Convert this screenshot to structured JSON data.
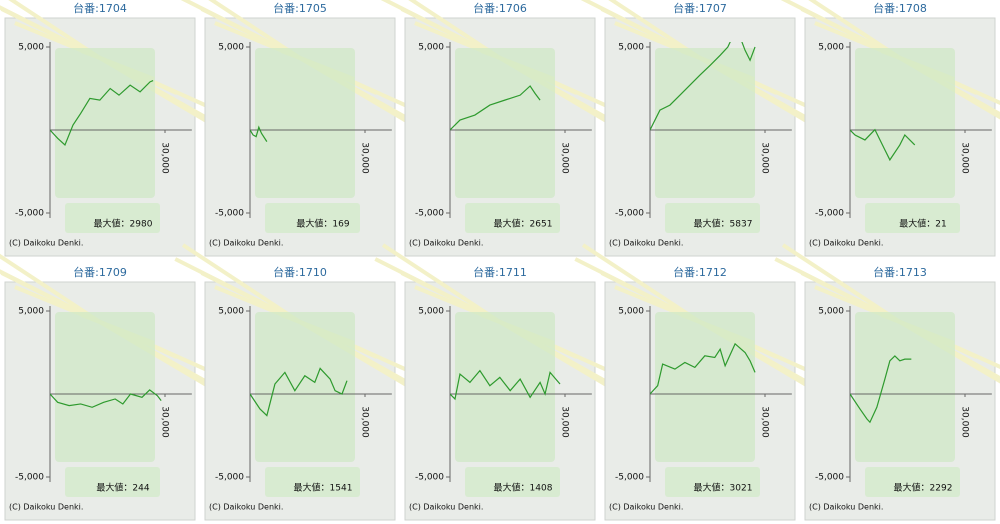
{
  "chart_data": [
    {
      "type": "line",
      "title": "台番:1704",
      "annotation": "最大値：2980",
      "copyright": "(C) Daikoku Denki.",
      "x": [
        0,
        2000,
        3900,
        6000,
        8000,
        10400,
        13000,
        15700,
        18000,
        20900,
        23500,
        26100,
        26900
      ],
      "series": [
        {
          "color": "#2e9a2e",
          "values": [
            0,
            -500,
            -900,
            300,
            1000,
            1900,
            1800,
            2500,
            2100,
            2700,
            2300,
            2900,
            2980
          ]
        }
      ],
      "xlim": [
        0,
        37000
      ],
      "xticks": [
        {
          "value": 30000,
          "label": "30,000"
        }
      ],
      "ylim": [
        -5300,
        5300
      ],
      "yticks": [
        {
          "value": 5000,
          "label": "5,000"
        },
        {
          "value": -5000,
          "label": "-5,000"
        }
      ]
    },
    {
      "type": "line",
      "title": "台番:1705",
      "annotation": "最大値：169",
      "copyright": "(C) Daikoku Denki.",
      "x": [
        0,
        800,
        1600,
        2300,
        3000,
        4400
      ],
      "series": [
        {
          "color": "#2e9a2e",
          "values": [
            0,
            -300,
            -400,
            169,
            -200,
            -700
          ]
        }
      ],
      "xlim": [
        0,
        37000
      ],
      "xticks": [
        {
          "value": 30000,
          "label": "30,000"
        }
      ],
      "ylim": [
        -5300,
        5300
      ],
      "yticks": [
        {
          "value": 5000,
          "label": "5,000"
        },
        {
          "value": -5000,
          "label": "-5,000"
        }
      ]
    },
    {
      "type": "line",
      "title": "台番:1706",
      "annotation": "最大値：2651",
      "copyright": "(C) Daikoku Denki.",
      "x": [
        0,
        2600,
        6500,
        10400,
        14300,
        18300,
        20900,
        22200,
        23500
      ],
      "series": [
        {
          "color": "#2e9a2e",
          "values": [
            0,
            600,
            900,
            1500,
            1800,
            2100,
            2651,
            2200,
            1800
          ]
        }
      ],
      "xlim": [
        0,
        37000
      ],
      "xticks": [
        {
          "value": 30000,
          "label": "30,000"
        }
      ],
      "ylim": [
        -5300,
        5300
      ],
      "yticks": [
        {
          "value": 5000,
          "label": "5,000"
        },
        {
          "value": -5000,
          "label": "-5,000"
        }
      ]
    },
    {
      "type": "line",
      "title": "台番:1707",
      "annotation": "最大値：5837",
      "copyright": "(C) Daikoku Denki.",
      "x": [
        0,
        2600,
        5200,
        7800,
        10400,
        13000,
        15700,
        18300,
        20300,
        22000,
        23500,
        24800,
        26100,
        27400
      ],
      "series": [
        {
          "color": "#2e9a2e",
          "values": [
            0,
            1200,
            1500,
            2100,
            2700,
            3300,
            3900,
            4500,
            5000,
            5837,
            5600,
            4800,
            4200,
            5000
          ]
        }
      ],
      "xlim": [
        0,
        37000
      ],
      "xticks": [
        {
          "value": 30000,
          "label": "30,000"
        }
      ],
      "ylim": [
        -5300,
        5300
      ],
      "yticks": [
        {
          "value": 5000,
          "label": "5,000"
        },
        {
          "value": -5000,
          "label": "-5,000"
        }
      ]
    },
    {
      "type": "line",
      "title": "台番:1708",
      "annotation": "最大値：21",
      "copyright": "(C) Daikoku Denki.",
      "x": [
        0,
        1300,
        3900,
        6500,
        9100,
        10400,
        13000,
        14300,
        16900
      ],
      "series": [
        {
          "color": "#2e9a2e",
          "values": [
            0,
            -300,
            -600,
            21,
            -1200,
            -1800,
            -900,
            -300,
            -900
          ]
        }
      ],
      "xlim": [
        0,
        37000
      ],
      "xticks": [
        {
          "value": 30000,
          "label": "30,000"
        }
      ],
      "ylim": [
        -5300,
        5300
      ],
      "yticks": [
        {
          "value": 5000,
          "label": "5,000"
        },
        {
          "value": -5000,
          "label": "-5,000"
        }
      ]
    },
    {
      "type": "line",
      "title": "台番:1709",
      "annotation": "最大値：244",
      "copyright": "(C) Daikoku Denki.",
      "x": [
        0,
        2000,
        5000,
        8000,
        11000,
        14000,
        17000,
        19000,
        21000,
        24000,
        26000,
        28000,
        29000
      ],
      "series": [
        {
          "color": "#2e9a2e",
          "values": [
            0,
            -500,
            -700,
            -600,
            -800,
            -500,
            -300,
            -600,
            0,
            -200,
            244,
            -100,
            -400
          ]
        }
      ],
      "xlim": [
        0,
        37000
      ],
      "xticks": [
        {
          "value": 30000,
          "label": "30,000"
        }
      ],
      "ylim": [
        -5300,
        5300
      ],
      "yticks": [
        {
          "value": 5000,
          "label": "5,000"
        },
        {
          "value": -5000,
          "label": "-5,000"
        }
      ]
    },
    {
      "type": "line",
      "title": "台番:1710",
      "annotation": "最大値：1541",
      "copyright": "(C) Daikoku Denki.",
      "x": [
        0,
        2600,
        4400,
        6500,
        9100,
        11700,
        14300,
        16900,
        18300,
        20900,
        22200,
        24000,
        25300
      ],
      "series": [
        {
          "color": "#2e9a2e",
          "values": [
            0,
            -900,
            -1300,
            600,
            1300,
            200,
            1100,
            700,
            1541,
            900,
            200,
            0,
            800
          ]
        }
      ],
      "xlim": [
        0,
        37000
      ],
      "xticks": [
        {
          "value": 30000,
          "label": "30,000"
        }
      ],
      "ylim": [
        -5300,
        5300
      ],
      "yticks": [
        {
          "value": 5000,
          "label": "5,000"
        },
        {
          "value": -5000,
          "label": "-5,000"
        }
      ]
    },
    {
      "type": "line",
      "title": "台番:1711",
      "annotation": "最大値：1408",
      "copyright": "(C) Daikoku Denki.",
      "x": [
        0,
        1300,
        2600,
        5200,
        7800,
        10400,
        13000,
        15700,
        18300,
        20900,
        23500,
        24800,
        26100,
        28700
      ],
      "series": [
        {
          "color": "#2e9a2e",
          "values": [
            0,
            -300,
            1200,
            700,
            1408,
            500,
            1000,
            200,
            900,
            -200,
            700,
            0,
            1300,
            600
          ]
        }
      ],
      "xlim": [
        0,
        37000
      ],
      "xticks": [
        {
          "value": 30000,
          "label": "30,000"
        }
      ],
      "ylim": [
        -5300,
        5300
      ],
      "yticks": [
        {
          "value": 5000,
          "label": "5,000"
        },
        {
          "value": -5000,
          "label": "-5,000"
        }
      ]
    },
    {
      "type": "line",
      "title": "台番:1712",
      "annotation": "最大値：3021",
      "copyright": "(C) Daikoku Denki.",
      "x": [
        0,
        2000,
        3300,
        6500,
        9100,
        11700,
        14300,
        16900,
        18300,
        19600,
        22200,
        24800,
        26100,
        27400
      ],
      "series": [
        {
          "color": "#2e9a2e",
          "values": [
            0,
            500,
            1800,
            1500,
            1900,
            1600,
            2300,
            2200,
            2700,
            1700,
            3021,
            2500,
            2000,
            1300
          ]
        }
      ],
      "xlim": [
        0,
        37000
      ],
      "xticks": [
        {
          "value": 30000,
          "label": "30,000"
        }
      ],
      "ylim": [
        -5300,
        5300
      ],
      "yticks": [
        {
          "value": 5000,
          "label": "5,000"
        },
        {
          "value": -5000,
          "label": "-5,000"
        }
      ]
    },
    {
      "type": "line",
      "title": "台番:1713",
      "annotation": "最大値：2292",
      "copyright": "(C) Daikoku Denki.",
      "x": [
        0,
        2600,
        4400,
        5200,
        7000,
        9100,
        10400,
        11700,
        13000,
        14300,
        16000
      ],
      "series": [
        {
          "color": "#2e9a2e",
          "values": [
            0,
            -900,
            -1500,
            -1700,
            -800,
            900,
            2000,
            2292,
            2000,
            2100,
            2100
          ]
        }
      ],
      "xlim": [
        0,
        37000
      ],
      "xticks": [
        {
          "value": 30000,
          "label": "30,000"
        }
      ],
      "ylim": [
        -5300,
        5300
      ],
      "yticks": [
        {
          "value": 5000,
          "label": "5,000"
        },
        {
          "value": -5000,
          "label": "-5,000"
        }
      ]
    }
  ]
}
